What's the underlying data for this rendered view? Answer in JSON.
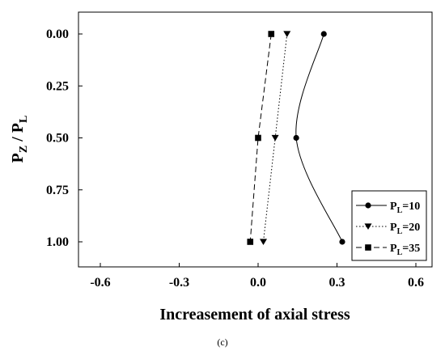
{
  "chart_data": {
    "type": "line",
    "xlabel": "Increasement of axial stress",
    "ylabel": "PZ/PL",
    "caption": "(c)",
    "xlim": [
      -0.7,
      0.7
    ],
    "ylim": [
      0.0,
      1.0
    ],
    "y_inverted": true,
    "x_ticks": [
      "-0.6",
      "-0.3",
      "0.0",
      "0.3",
      "0.6"
    ],
    "x_tick_values": [
      -0.6,
      -0.3,
      0.0,
      0.3,
      0.6
    ],
    "y_ticks": [
      "0.00",
      "0.25",
      "0.50",
      "0.75",
      "1.00"
    ],
    "y_tick_values": [
      0.0,
      0.25,
      0.5,
      0.75,
      1.0
    ],
    "legend_placement": "bottom-right",
    "series": [
      {
        "name": "PL=10",
        "label_main": "P",
        "label_sub": "L",
        "label_rest": "=10",
        "marker": "circle",
        "line": "solid",
        "x": [
          0.25,
          0.145,
          0.32
        ],
        "y": [
          0.0,
          0.5,
          1.0
        ]
      },
      {
        "name": "PL=20",
        "label_main": "P",
        "label_sub": "L",
        "label_rest": "=20",
        "marker": "triangle-down",
        "line": "dotted",
        "x": [
          0.11,
          0.065,
          0.02
        ],
        "y": [
          0.0,
          0.5,
          1.0
        ]
      },
      {
        "name": "PL=35",
        "label_main": "P",
        "label_sub": "L",
        "label_rest": "=35",
        "marker": "square",
        "line": "dashed",
        "x": [
          0.05,
          0.0,
          -0.03
        ],
        "y": [
          0.0,
          0.5,
          1.0
        ]
      }
    ]
  }
}
